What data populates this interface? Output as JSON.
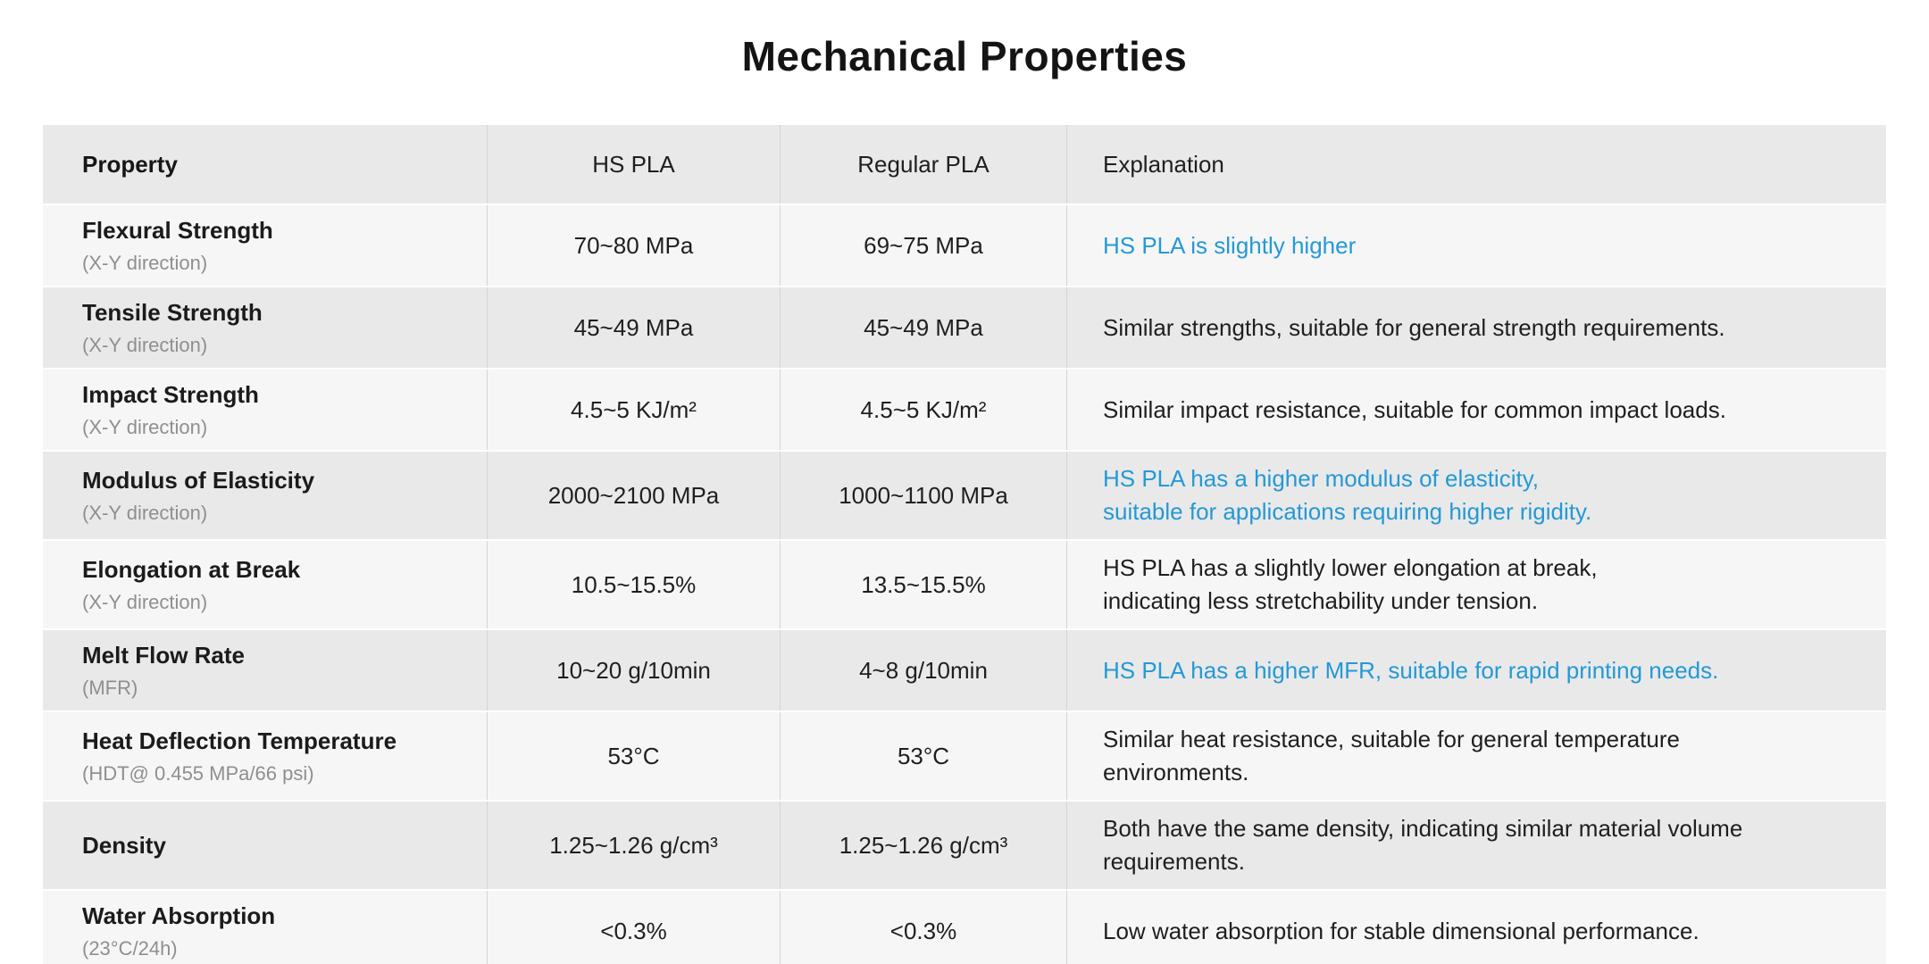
{
  "page": {
    "title": "Mechanical Properties"
  },
  "colors": {
    "accent_blue": "#2499d6",
    "header_bg": "#e9e9e9",
    "row_light_bg": "#f6f6f6",
    "row_dark_bg": "#e9e9e9",
    "sublabel_gray": "#8f8f8f"
  },
  "table": {
    "headers": [
      "Property",
      "HS PLA",
      "Regular PLA",
      "Explanation"
    ],
    "rows": [
      {
        "property": "Flexural Strength",
        "sub": "(X-Y direction)",
        "hs_pla": "70~80 MPa",
        "regular_pla": "69~75 MPa",
        "explanation": "HS PLA is slightly higher",
        "highlight": true
      },
      {
        "property": "Tensile Strength",
        "sub": "(X-Y direction)",
        "hs_pla": "45~49 MPa",
        "regular_pla": "45~49 MPa",
        "explanation": "Similar strengths, suitable for general strength requirements.",
        "highlight": false
      },
      {
        "property": "Impact Strength",
        "sub": "(X-Y direction)",
        "hs_pla": "4.5~5 KJ/m²",
        "regular_pla": "4.5~5 KJ/m²",
        "explanation": "Similar impact resistance, suitable for common impact loads.",
        "highlight": false
      },
      {
        "property": "Modulus of Elasticity",
        "sub": "(X-Y direction)",
        "hs_pla": "2000~2100 MPa",
        "regular_pla": "1000~1100 MPa",
        "explanation": "HS PLA has a higher modulus of elasticity,\nsuitable for applications requiring higher rigidity.",
        "highlight": true
      },
      {
        "property": "Elongation at Break",
        "sub": "(X-Y direction)",
        "hs_pla": "10.5~15.5%",
        "regular_pla": "13.5~15.5%",
        "explanation": "HS PLA has a slightly lower elongation at break,\nindicating less stretchability under tension.",
        "highlight": false
      },
      {
        "property": "Melt Flow Rate",
        "sub": "(MFR)",
        "hs_pla": "10~20 g/10min",
        "regular_pla": "4~8 g/10min",
        "explanation": "HS PLA has a higher MFR, suitable for rapid printing needs.",
        "highlight": true
      },
      {
        "property": "Heat Deflection Temperature",
        "sub": "(HDT@ 0.455 MPa/66 psi)",
        "hs_pla": "53°C",
        "regular_pla": "53°C",
        "explanation": "Similar heat resistance, suitable for general temperature\nenvironments.",
        "highlight": false
      },
      {
        "property": "Density",
        "sub": "",
        "hs_pla": "1.25~1.26 g/cm³",
        "regular_pla": "1.25~1.26 g/cm³",
        "explanation": "Both have the same density, indicating similar material volume\nrequirements.",
        "highlight": false
      },
      {
        "property": "Water Absorption",
        "sub": "(23°C/24h)",
        "hs_pla": "<0.3%",
        "regular_pla": "<0.3%",
        "explanation": "Low water absorption for stable dimensional performance.",
        "highlight": false
      }
    ]
  }
}
